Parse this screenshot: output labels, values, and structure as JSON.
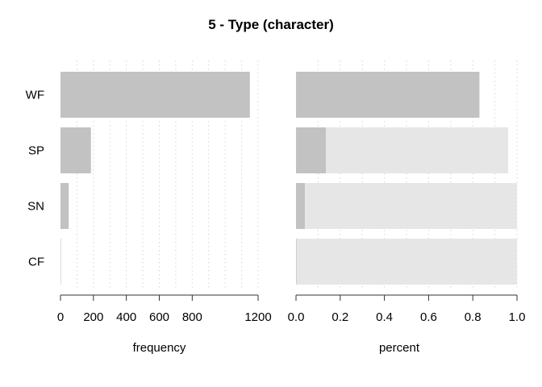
{
  "chart_data": {
    "title": "5 - Type (character)",
    "categories": [
      "WF",
      "SP",
      "SN",
      "CF"
    ],
    "colors": {
      "bar": "#c2c2c2",
      "remainder": "#e6e6e6"
    },
    "panels": [
      {
        "type": "bar",
        "orientation": "horizontal",
        "xlabel": "frequency",
        "xlim": [
          0,
          1200
        ],
        "grid": "vertical-dotted",
        "ticks": [
          0,
          200,
          400,
          600,
          800,
          1200
        ],
        "tick_labels": [
          "0",
          "200",
          "400",
          "600",
          "800",
          "1200"
        ],
        "values": [
          1150,
          185,
          50,
          2
        ]
      },
      {
        "type": "bar",
        "orientation": "horizontal",
        "stacked_remainder": true,
        "xlabel": "percent",
        "xlim": [
          0,
          1
        ],
        "grid": "vertical-dotted",
        "ticks": [
          0,
          0.2,
          0.4,
          0.6,
          0.8,
          1.0
        ],
        "tick_labels": [
          "0.0",
          "0.2",
          "0.4",
          "0.6",
          "0.8",
          "1.0"
        ],
        "values": [
          0.83,
          0.135,
          0.04,
          0.002
        ],
        "totals": [
          0.83,
          0.96,
          1.0,
          1.0
        ]
      }
    ]
  }
}
